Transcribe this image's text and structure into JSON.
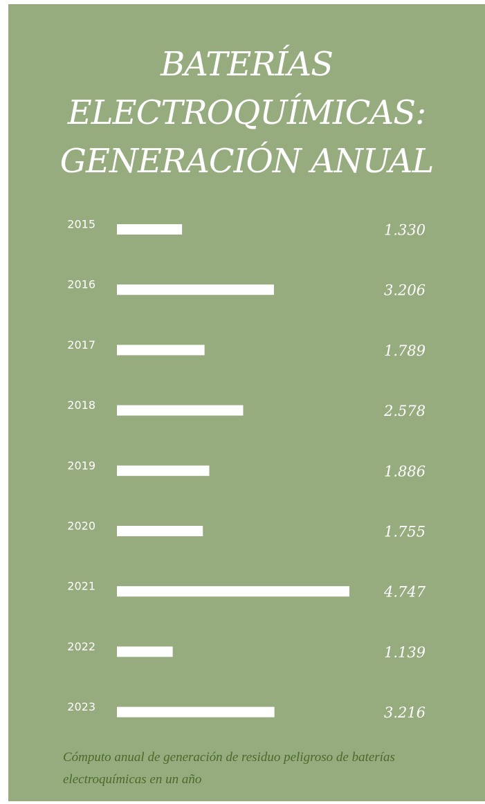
{
  "title_lines": [
    "BATERÍAS",
    "ELECTROQUÍMICAS:",
    "GENERACIÓN ANUAL"
  ],
  "caption": "Cómputo anual de generación de residuo peligroso de baterías electroquímicas en un año",
  "colors": {
    "background": "#96ab7e",
    "bar": "#ffffff",
    "text": "#ffffff",
    "caption": "#4a6a2a"
  },
  "chart_data": {
    "type": "bar",
    "orientation": "horizontal",
    "categories": [
      "2015",
      "2016",
      "2017",
      "2018",
      "2019",
      "2020",
      "2021",
      "2022",
      "2023"
    ],
    "values": [
      1330,
      3206,
      1789,
      2578,
      1886,
      1755,
      4747,
      1139,
      3216
    ],
    "value_labels": [
      "1.330",
      "3.206",
      "1.789",
      "2.578",
      "1.886",
      "1.755",
      "4.747",
      "1.139",
      "3.216"
    ]
  }
}
